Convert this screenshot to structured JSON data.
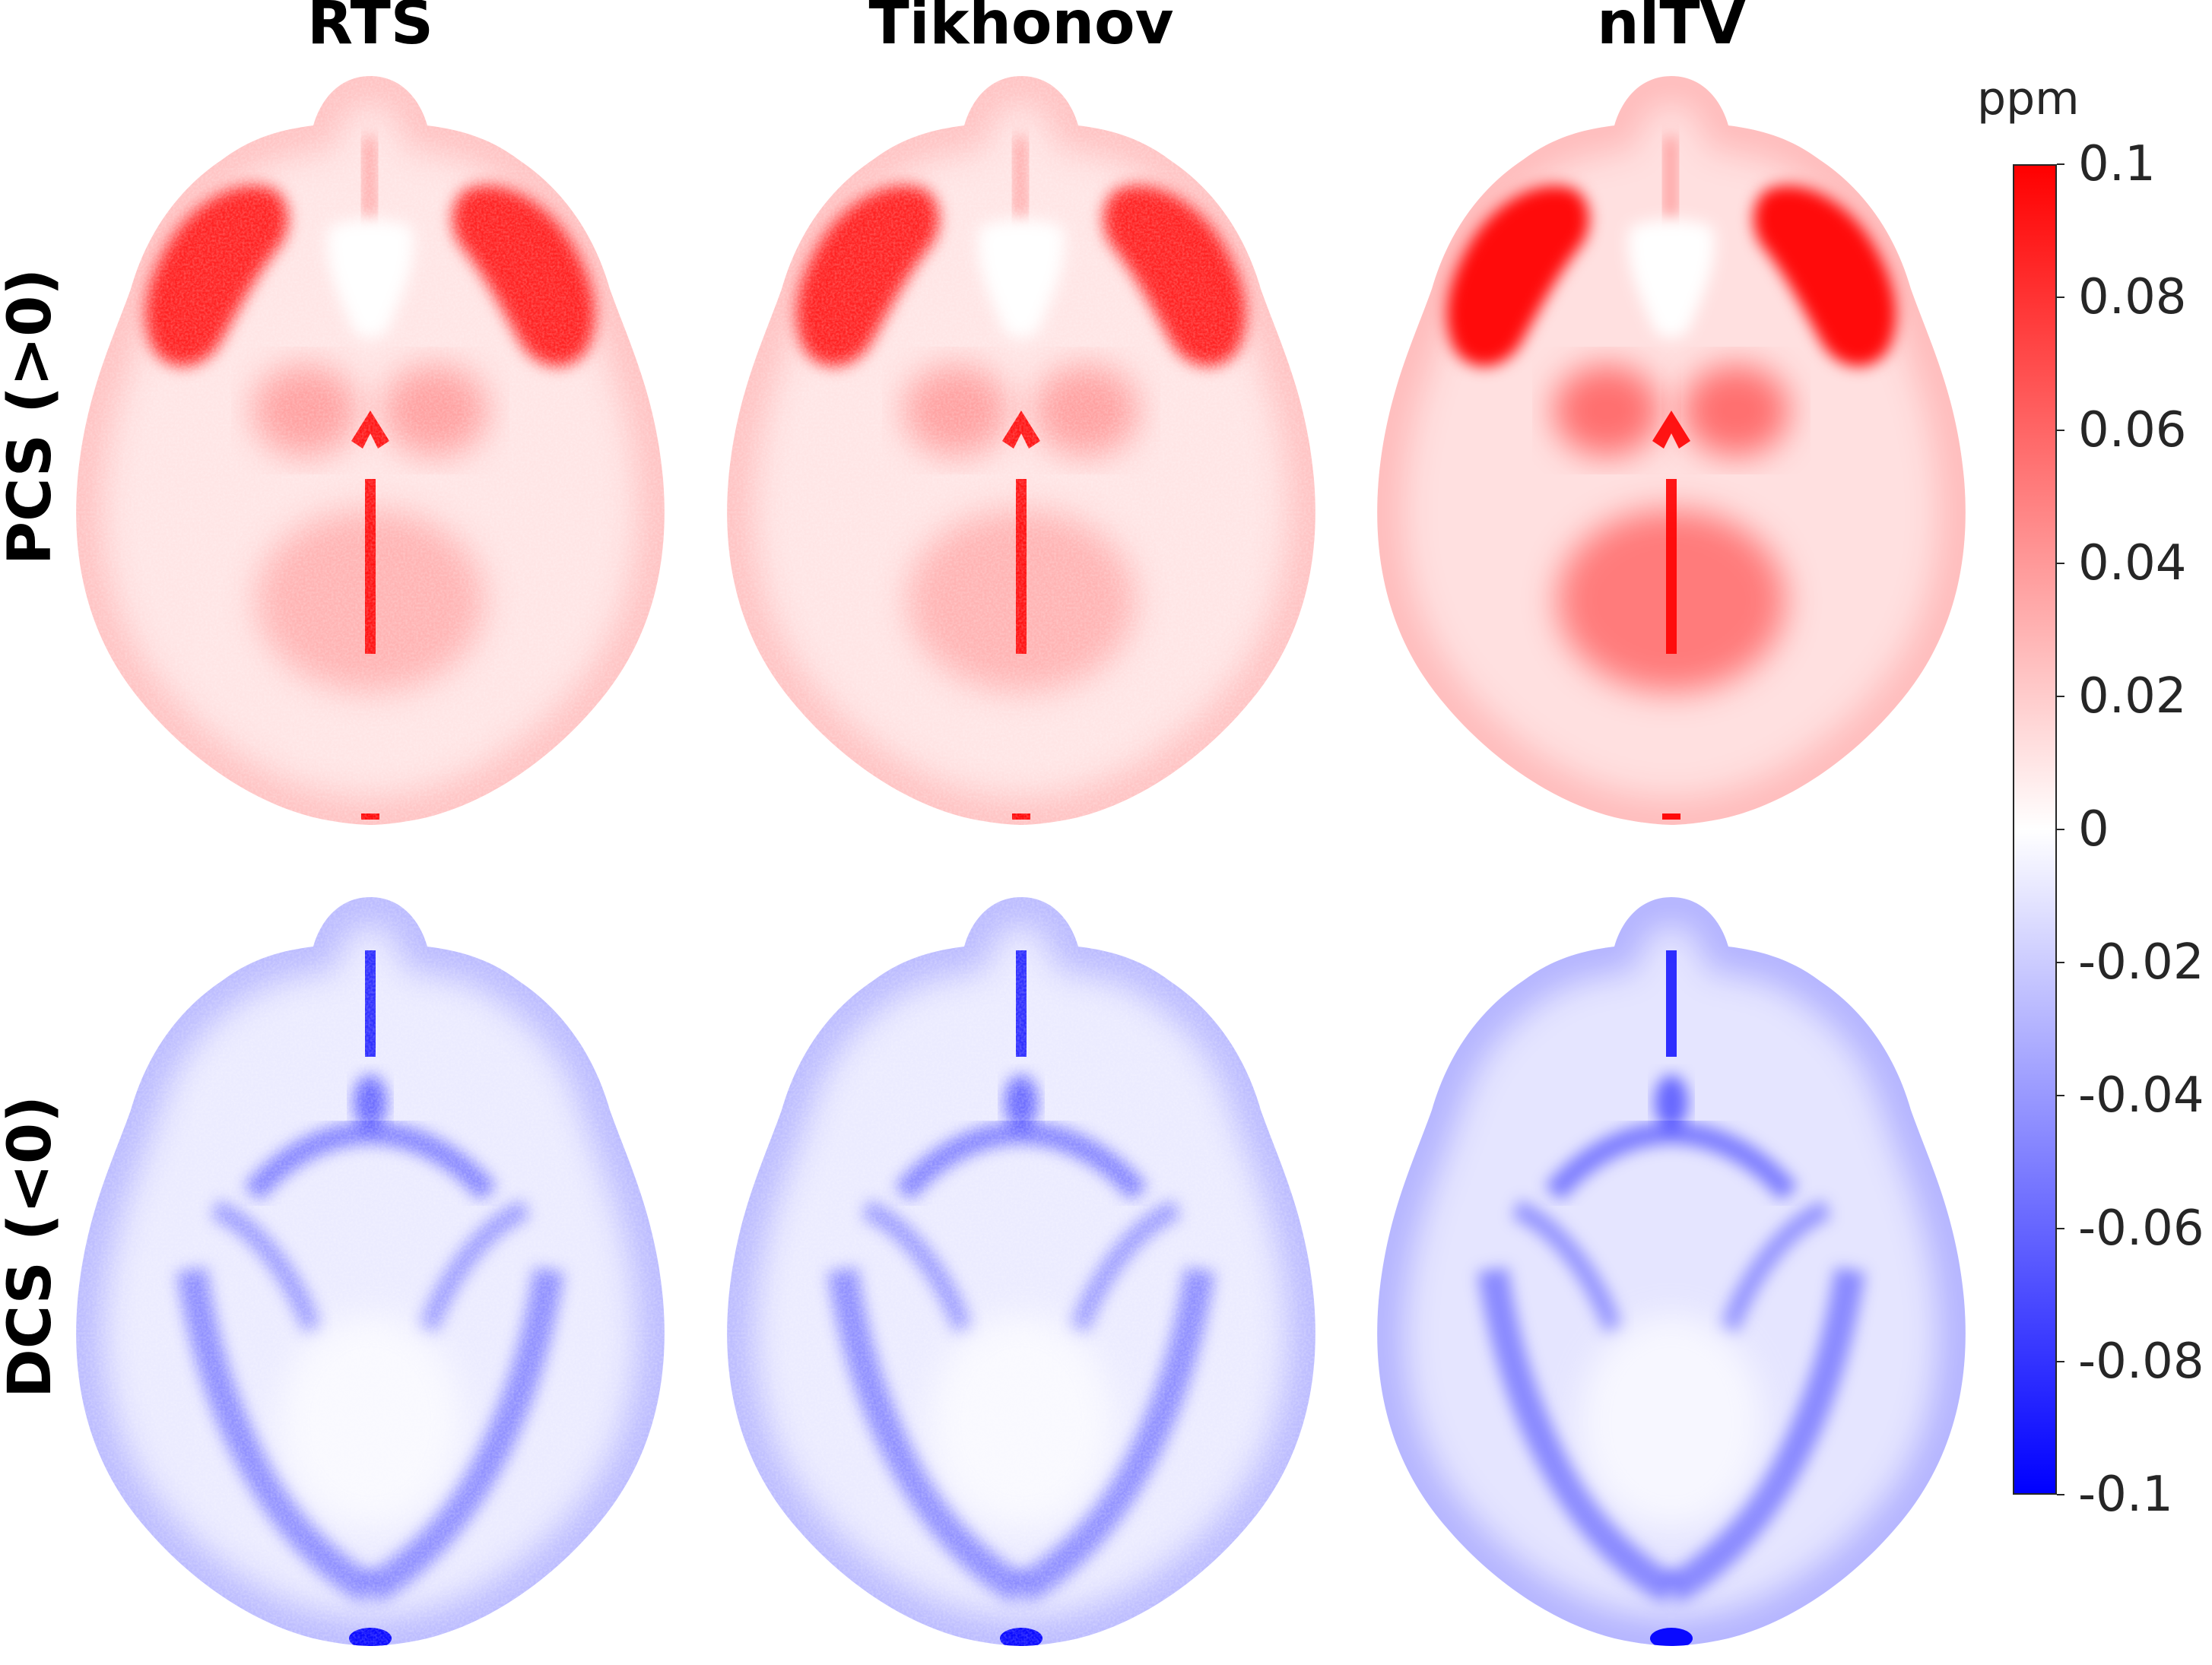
{
  "columns": [
    {
      "title": "RTS"
    },
    {
      "title": "Tikhonov"
    },
    {
      "title": "nlTV"
    }
  ],
  "rows": [
    {
      "title": "PCS (>0)",
      "sign": "positive"
    },
    {
      "title": "DCS (<0)",
      "sign": "negative"
    }
  ],
  "colorbar": {
    "unit": "ppm",
    "range": [
      -0.1,
      0.1
    ],
    "ticks": [
      "0.1",
      "0.08",
      "0.06",
      "0.04",
      "0.02",
      "0",
      "-0.02",
      "-0.04",
      "-0.06",
      "-0.08",
      "-0.1"
    ],
    "colors": {
      "max": "#ff0000",
      "zero": "#ffffff",
      "min": "#0000ff"
    }
  }
}
